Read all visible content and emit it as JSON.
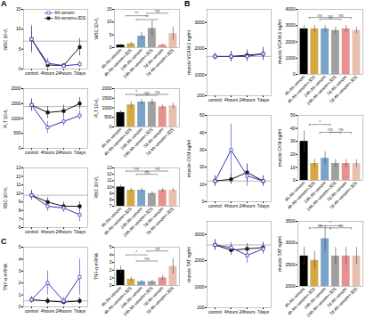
{
  "chart_data": [
    {
      "type": "line",
      "categories": [
        "control",
        "4hours",
        "24hours",
        "7days"
      ],
      "series": [
        {
          "name": "Ah venom",
          "color": "#3333bb",
          "marker": "square-open",
          "values": [
            7.5,
            1.5,
            0.8,
            1.2
          ],
          "errors": [
            3.5,
            1.2,
            0.5,
            0.8
          ]
        },
        {
          "name": "Ah venom+JDS",
          "color": "#111111",
          "marker": "square",
          "values": [
            7.5,
            1.0,
            0.9,
            5.5
          ],
          "errors": [
            3.0,
            0.8,
            0.4,
            2.2
          ]
        }
      ],
      "reference": 7.0,
      "ylim": [
        0,
        15
      ],
      "yticks": [
        0,
        5,
        10,
        15
      ],
      "ylabel": "WBC 10⁹/L",
      "legend": "upper right",
      "annotations": [
        {
          "text": "A"
        }
      ]
    },
    {
      "type": "bar",
      "categories": [
        "4h Ah-venom",
        "4h Ah-venom+JDS",
        "24h Ah-venom",
        "24h Ah-venom+JDS",
        "7d Ah-venom",
        "7d Ah-venom+JDS"
      ],
      "values": [
        1.0,
        1.5,
        4.5,
        7.5,
        1.0,
        5.5
      ],
      "errors": [
        0.3,
        0.6,
        1.5,
        3.0,
        0.4,
        2.5
      ],
      "colors": [
        "#000000",
        "#D4A843",
        "#7BA3C8",
        "#A0A0A0",
        "#E89090",
        "#E8C0B0"
      ],
      "ylim": [
        0,
        15
      ],
      "yticks": [
        0,
        5,
        10,
        15
      ],
      "ylabel": "WBC 10⁹/L",
      "annotations": [
        {
          "text": "**",
          "y": 12.5,
          "from": [
            "4h Ah-venom",
            "4h Ah-venom+JDS"
          ],
          "to": [
            "24h Ah-venom",
            "24h Ah-venom+JDS"
          ]
        },
        {
          "text": "**",
          "y": 11.0,
          "from": [
            "4h Ah-venom+JDS",
            "24h Ah-venom"
          ],
          "to": [
            "24h Ah-venom+JDS",
            "7d Ah-venom"
          ]
        },
        {
          "text": "ns",
          "y": 13.5,
          "from": [
            "24h Ah-venom",
            "24h Ah-venom+JDS"
          ],
          "to": [
            "7d Ah-venom",
            "7d Ah-venom+JDS"
          ]
        }
      ]
    },
    {
      "type": "line",
      "categories": [
        "control",
        "4hours",
        "24hours",
        "7days"
      ],
      "series": [
        {
          "name": "Ah venom",
          "color": "#3333bb",
          "marker": "square-open",
          "values": [
            1450,
            700,
            900,
            1100
          ],
          "errors": [
            200,
            200,
            150,
            150
          ]
        },
        {
          "name": "Ah venom+JDS",
          "color": "#111111",
          "marker": "square",
          "values": [
            1450,
            1200,
            1250,
            1500
          ],
          "errors": [
            200,
            200,
            200,
            200
          ]
        }
      ],
      "reference": 1400,
      "ylim": [
        0,
        2000
      ],
      "yticks": [
        0,
        500,
        1000,
        1500,
        2000
      ],
      "ylabel": "PLT 10⁹/L"
    },
    {
      "type": "bar",
      "categories": [
        "4h Ah-venom",
        "4h Ah-venom+JDS",
        "24h Ah-venom",
        "24h Ah-venom+JDS",
        "7d Ah-venom",
        "7d Ah-venom+JDS"
      ],
      "values": [
        750,
        1150,
        1300,
        1300,
        1050,
        1100
      ],
      "errors": [
        100,
        150,
        150,
        150,
        100,
        150
      ],
      "colors": [
        "#000000",
        "#D4A843",
        "#7BA3C8",
        "#A0A0A0",
        "#E89090",
        "#E8C0B0"
      ],
      "ylim": [
        0,
        2000
      ],
      "yticks": [
        0,
        500,
        1000,
        1500,
        2000
      ],
      "ylabel": "PLT 10⁹/L",
      "annotations": [
        {
          "text": "*",
          "y": 1700,
          "from": [
            "4h Ah-venom",
            "4h Ah-venom+JDS"
          ],
          "to": [
            "24h Ah-venom",
            "24h Ah-venom+JDS"
          ]
        },
        {
          "text": "ns",
          "y": 1650,
          "from": [
            "4h Ah-venom+JDS",
            "24h Ah-venom"
          ],
          "to": [
            "24h Ah-venom+JDS",
            "7d Ah-venom"
          ]
        },
        {
          "text": "ns",
          "y": 1700,
          "from": [
            "24h Ah-venom",
            "24h Ah-venom+JDS"
          ],
          "to": [
            "7d Ah-venom",
            "7d Ah-venom+JDS"
          ]
        }
      ]
    },
    {
      "type": "line",
      "categories": [
        "control",
        "4hours",
        "24hours",
        "7days"
      ],
      "series": [
        {
          "name": "Ah venom",
          "color": "#3333bb",
          "marker": "square-open",
          "values": [
            9.8,
            8.5,
            8.3,
            7.5
          ],
          "errors": [
            0.6,
            0.6,
            0.5,
            0.8
          ]
        },
        {
          "name": "Ah venom+JDS",
          "color": "#111111",
          "marker": "square",
          "values": [
            9.8,
            9.0,
            8.5,
            8.5
          ],
          "errors": [
            0.5,
            0.5,
            0.5,
            0.5
          ]
        }
      ],
      "reference": 9.8,
      "ylim": [
        6,
        13
      ],
      "yticks": [
        6,
        7,
        8,
        9,
        10,
        11,
        12,
        13
      ],
      "ylabel": "RBC 10¹²/L"
    },
    {
      "type": "bar",
      "categories": [
        "4h Ah-venom",
        "4h Ah-venom+JDS",
        "24h Ah-venom",
        "24h Ah-venom+JDS",
        "7d Ah-venom",
        "7d Ah-venom+JDS"
      ],
      "values": [
        10.0,
        9.5,
        9.5,
        9.0,
        9.5,
        9.5
      ],
      "errors": [
        0.3,
        0.3,
        0.3,
        0.3,
        0.3,
        0.3
      ],
      "colors": [
        "#000000",
        "#D4A843",
        "#7BA3C8",
        "#A0A0A0",
        "#E89090",
        "#E8C0B0"
      ],
      "ylim": [
        7,
        13
      ],
      "yticks": [
        7,
        8,
        9,
        10,
        11,
        12,
        13
      ],
      "ylabel": "RBC 10¹²/L",
      "annotations": [
        {
          "text": "ns",
          "y": 12.5,
          "from": [
            "4h Ah-venom",
            "4h Ah-venom+JDS"
          ],
          "to": [
            "24h Ah-venom",
            "24h Ah-venom+JDS"
          ]
        },
        {
          "text": "ns",
          "y": 12.0,
          "from": [
            "4h Ah-venom+JDS",
            "24h Ah-venom"
          ],
          "to": [
            "24h Ah-venom+JDS",
            "7d Ah-venom"
          ]
        },
        {
          "text": "ns",
          "y": 12.5,
          "from": [
            "24h Ah-venom",
            "24h Ah-venom+JDS"
          ],
          "to": [
            "7d Ah-venom",
            "7d Ah-venom+JDS"
          ]
        }
      ]
    },
    {
      "type": "line",
      "categories": [
        "control",
        "4hours",
        "24hours",
        "7days"
      ],
      "series": [
        {
          "name": "Ah venom",
          "color": "#3333bb",
          "marker": "square-open",
          "values": [
            0.6,
            2.0,
            0.5,
            2.5
          ],
          "errors": [
            0.3,
            1.0,
            0.3,
            1.5
          ]
        },
        {
          "name": "Ah venom+JDS",
          "color": "#111111",
          "marker": "square",
          "values": [
            0.6,
            0.5,
            0.4,
            0.5
          ],
          "errors": [
            0.2,
            0.3,
            0.2,
            0.3
          ]
        }
      ],
      "reference": 0.5,
      "ylim": [
        0,
        5
      ],
      "yticks": [
        0,
        1,
        2,
        3,
        4,
        5
      ],
      "ylabel": "TNF-α mRNA",
      "annotations": [
        {
          "text": "C"
        }
      ]
    },
    {
      "type": "bar",
      "categories": [
        "4h Ah-venom",
        "4h Ah-venom+JDS",
        "24h Ah-venom",
        "24h Ah-venom+JDS",
        "7d Ah-venom",
        "7d Ah-venom+JDS"
      ],
      "values": [
        2.0,
        0.8,
        0.5,
        0.5,
        1.0,
        2.5
      ],
      "errors": [
        0.5,
        0.3,
        0.2,
        0.2,
        0.3,
        1.0
      ],
      "colors": [
        "#000000",
        "#D4A843",
        "#7BA3C8",
        "#A0A0A0",
        "#E89090",
        "#E8C0B0"
      ],
      "ylim": [
        0,
        5
      ],
      "yticks": [
        0,
        1,
        2,
        3,
        4,
        5
      ],
      "ylabel": "TNF-α mRNA",
      "annotations": [
        {
          "text": "*",
          "y": 4.0,
          "from": [
            "4h Ah-venom",
            "4h Ah-venom+JDS"
          ],
          "to": [
            "24h Ah-venom",
            "24h Ah-venom+JDS"
          ]
        },
        {
          "text": "ns",
          "y": 3.2,
          "from": [
            "4h Ah-venom+JDS",
            "24h Ah-venom"
          ],
          "to": [
            "24h Ah-venom+JDS",
            "7d Ah-venom"
          ]
        },
        {
          "text": "ns",
          "y": 4.5,
          "from": [
            "24h Ah-venom",
            "24h Ah-venom+JDS"
          ],
          "to": [
            "7d Ah-venom",
            "7d Ah-venom+JDS"
          ]
        }
      ]
    },
    {
      "type": "line",
      "categories": [
        "control",
        "4hours",
        "24hours",
        "7days"
      ],
      "series": [
        {
          "name": "Ah venom",
          "color": "#3333bb",
          "marker": "square-open",
          "values": [
            1700,
            1700,
            1700,
            1800
          ],
          "errors": [
            120,
            200,
            200,
            200
          ]
        },
        {
          "name": "Ah venom+JDS",
          "color": "#111111",
          "marker": "square",
          "values": [
            1700,
            1700,
            1750,
            1800
          ],
          "errors": [
            120,
            200,
            200,
            250
          ]
        }
      ],
      "reference": 1700,
      "ylim": [
        200,
        3500
      ],
      "yticks": [
        200,
        1000,
        2000,
        3000
      ],
      "ylabel": "muscle VCAM-1 ng/ml",
      "annotations": [
        {
          "text": "B"
        }
      ]
    },
    {
      "type": "bar",
      "categories": [
        "4h Ah-venom",
        "4h Ah-venom+JDS",
        "24h Ah-venom",
        "24h Ah-venom+JDS",
        "7d Ah-venom",
        "7d Ah-venom+JDS"
      ],
      "values": [
        2800,
        2800,
        2800,
        2700,
        2800,
        2700
      ],
      "errors": [
        200,
        200,
        200,
        200,
        200,
        200
      ],
      "colors": [
        "#000000",
        "#D4A843",
        "#7BA3C8",
        "#A0A0A0",
        "#E89090",
        "#E8C0B0"
      ],
      "ylim": [
        0,
        4000
      ],
      "yticks": [
        0,
        1000,
        2000,
        3000,
        4000
      ],
      "ylabel": "muscle VCAM-1 ng/ml",
      "annotations": [
        {
          "text": "ns",
          "y": 3500,
          "from": [
            "4h Ah-venom",
            "4h Ah-venom+JDS"
          ],
          "to": [
            "24h Ah-venom",
            "24h Ah-venom+JDS"
          ]
        },
        {
          "text": "ns",
          "y": 3400,
          "from": [
            "4h Ah-venom+JDS",
            "24h Ah-venom"
          ],
          "to": [
            "24h Ah-venom+JDS",
            "7d Ah-venom"
          ]
        },
        {
          "text": "ns",
          "y": 3500,
          "from": [
            "24h Ah-venom",
            "24h Ah-venom+JDS"
          ],
          "to": [
            "7d Ah-venom",
            "7d Ah-venom+JDS"
          ]
        }
      ]
    },
    {
      "type": "line",
      "categories": [
        "control",
        "4hours",
        "24hours",
        "7days"
      ],
      "series": [
        {
          "name": "Ah venom",
          "color": "#3333bb",
          "marker": "square-open",
          "values": [
            12,
            30,
            15,
            12
          ],
          "errors": [
            3,
            15,
            6,
            3
          ]
        },
        {
          "name": "Ah venom+JDS",
          "color": "#111111",
          "marker": "square",
          "values": [
            12,
            13,
            17,
            12
          ],
          "errors": [
            3,
            3,
            5,
            3
          ]
        }
      ],
      "reference": 12,
      "ylim": [
        0,
        50
      ],
      "yticks": [
        0,
        10,
        20,
        30,
        40,
        50
      ],
      "ylabel": "muscle CKM ng/ml"
    },
    {
      "type": "bar",
      "categories": [
        "4h Ah-venom",
        "4h Ah-venom+JDS",
        "24h Ah-venom",
        "24h Ah-venom+JDS",
        "7d Ah-venom",
        "7d Ah-venom+JDS"
      ],
      "values": [
        30,
        13,
        17,
        13,
        13,
        13
      ],
      "errors": [
        8,
        3,
        5,
        3,
        3,
        3
      ],
      "colors": [
        "#000000",
        "#D4A843",
        "#7BA3C8",
        "#A0A0A0",
        "#E89090",
        "#E8C0B0"
      ],
      "ylim": [
        0,
        50
      ],
      "yticks": [
        0,
        10,
        20,
        30,
        40,
        50
      ],
      "ylabel": "muscle CKM ng/ml",
      "annotations": [
        {
          "text": "*",
          "y": 43,
          "from": [
            "4h Ah-venom",
            "4h Ah-venom+JDS"
          ],
          "to": [
            "24h Ah-venom",
            "24h Ah-venom+JDS"
          ]
        },
        {
          "text": "ns",
          "y": 37,
          "from": [
            "4h Ah-venom+JDS",
            "24h Ah-venom"
          ],
          "to": [
            "24h Ah-venom+JDS",
            "7d Ah-venom"
          ]
        },
        {
          "text": "ns",
          "y": 37,
          "from": [
            "24h Ah-venom",
            "24h Ah-venom+JDS"
          ],
          "to": [
            "7d Ah-venom",
            "7d Ah-venom+JDS"
          ]
        }
      ]
    },
    {
      "type": "line",
      "categories": [
        "control",
        "4hours",
        "24hours",
        "7days"
      ],
      "series": [
        {
          "name": "Ah venom",
          "color": "#3333bb",
          "marker": "square-open",
          "values": [
            2600,
            2500,
            2200,
            2450
          ],
          "errors": [
            200,
            200,
            300,
            200
          ]
        },
        {
          "name": "Ah venom+JDS",
          "color": "#111111",
          "marker": "square",
          "values": [
            2600,
            2400,
            2450,
            2500
          ],
          "errors": [
            200,
            200,
            200,
            200
          ]
        }
      ],
      "reference": 2600,
      "ylim": [
        200,
        3500
      ],
      "yticks": [
        200,
        1000,
        2000,
        3000
      ],
      "ylabel": "muscle TAT ng/ml"
    },
    {
      "type": "bar",
      "categories": [
        "4h Ah-venom",
        "4h Ah-venom+JDS",
        "24h Ah-venom",
        "24h Ah-venom+JDS",
        "7d Ah-venom",
        "7d Ah-venom+JDS"
      ],
      "values": [
        2700,
        2600,
        3100,
        2700,
        2700,
        2700
      ],
      "errors": [
        200,
        200,
        300,
        200,
        200,
        200
      ],
      "colors": [
        "#000000",
        "#D4A843",
        "#7BA3C8",
        "#A0A0A0",
        "#E89090",
        "#E8C0B0"
      ],
      "ylim": [
        2000,
        3500
      ],
      "yticks": [
        2000,
        2500,
        3000,
        3500
      ],
      "ylabel": "muscle TAT ng/ml",
      "annotations": [
        {
          "text": "ns",
          "y": 3350,
          "from": [
            "4h Ah-venom",
            "4h Ah-venom+JDS"
          ],
          "to": [
            "24h Ah-venom",
            "24h Ah-venom+JDS"
          ]
        },
        {
          "text": "*",
          "y": 3400,
          "from": [
            "4h Ah-venom+JDS",
            "24h Ah-venom"
          ],
          "to": [
            "24h Ah-venom+JDS",
            "7d Ah-venom"
          ]
        },
        {
          "text": "ns",
          "y": 3350,
          "from": [
            "24h Ah-venom",
            "24h Ah-venom+JDS"
          ],
          "to": [
            "7d Ah-venom",
            "7d Ah-venom+JDS"
          ]
        }
      ]
    }
  ]
}
